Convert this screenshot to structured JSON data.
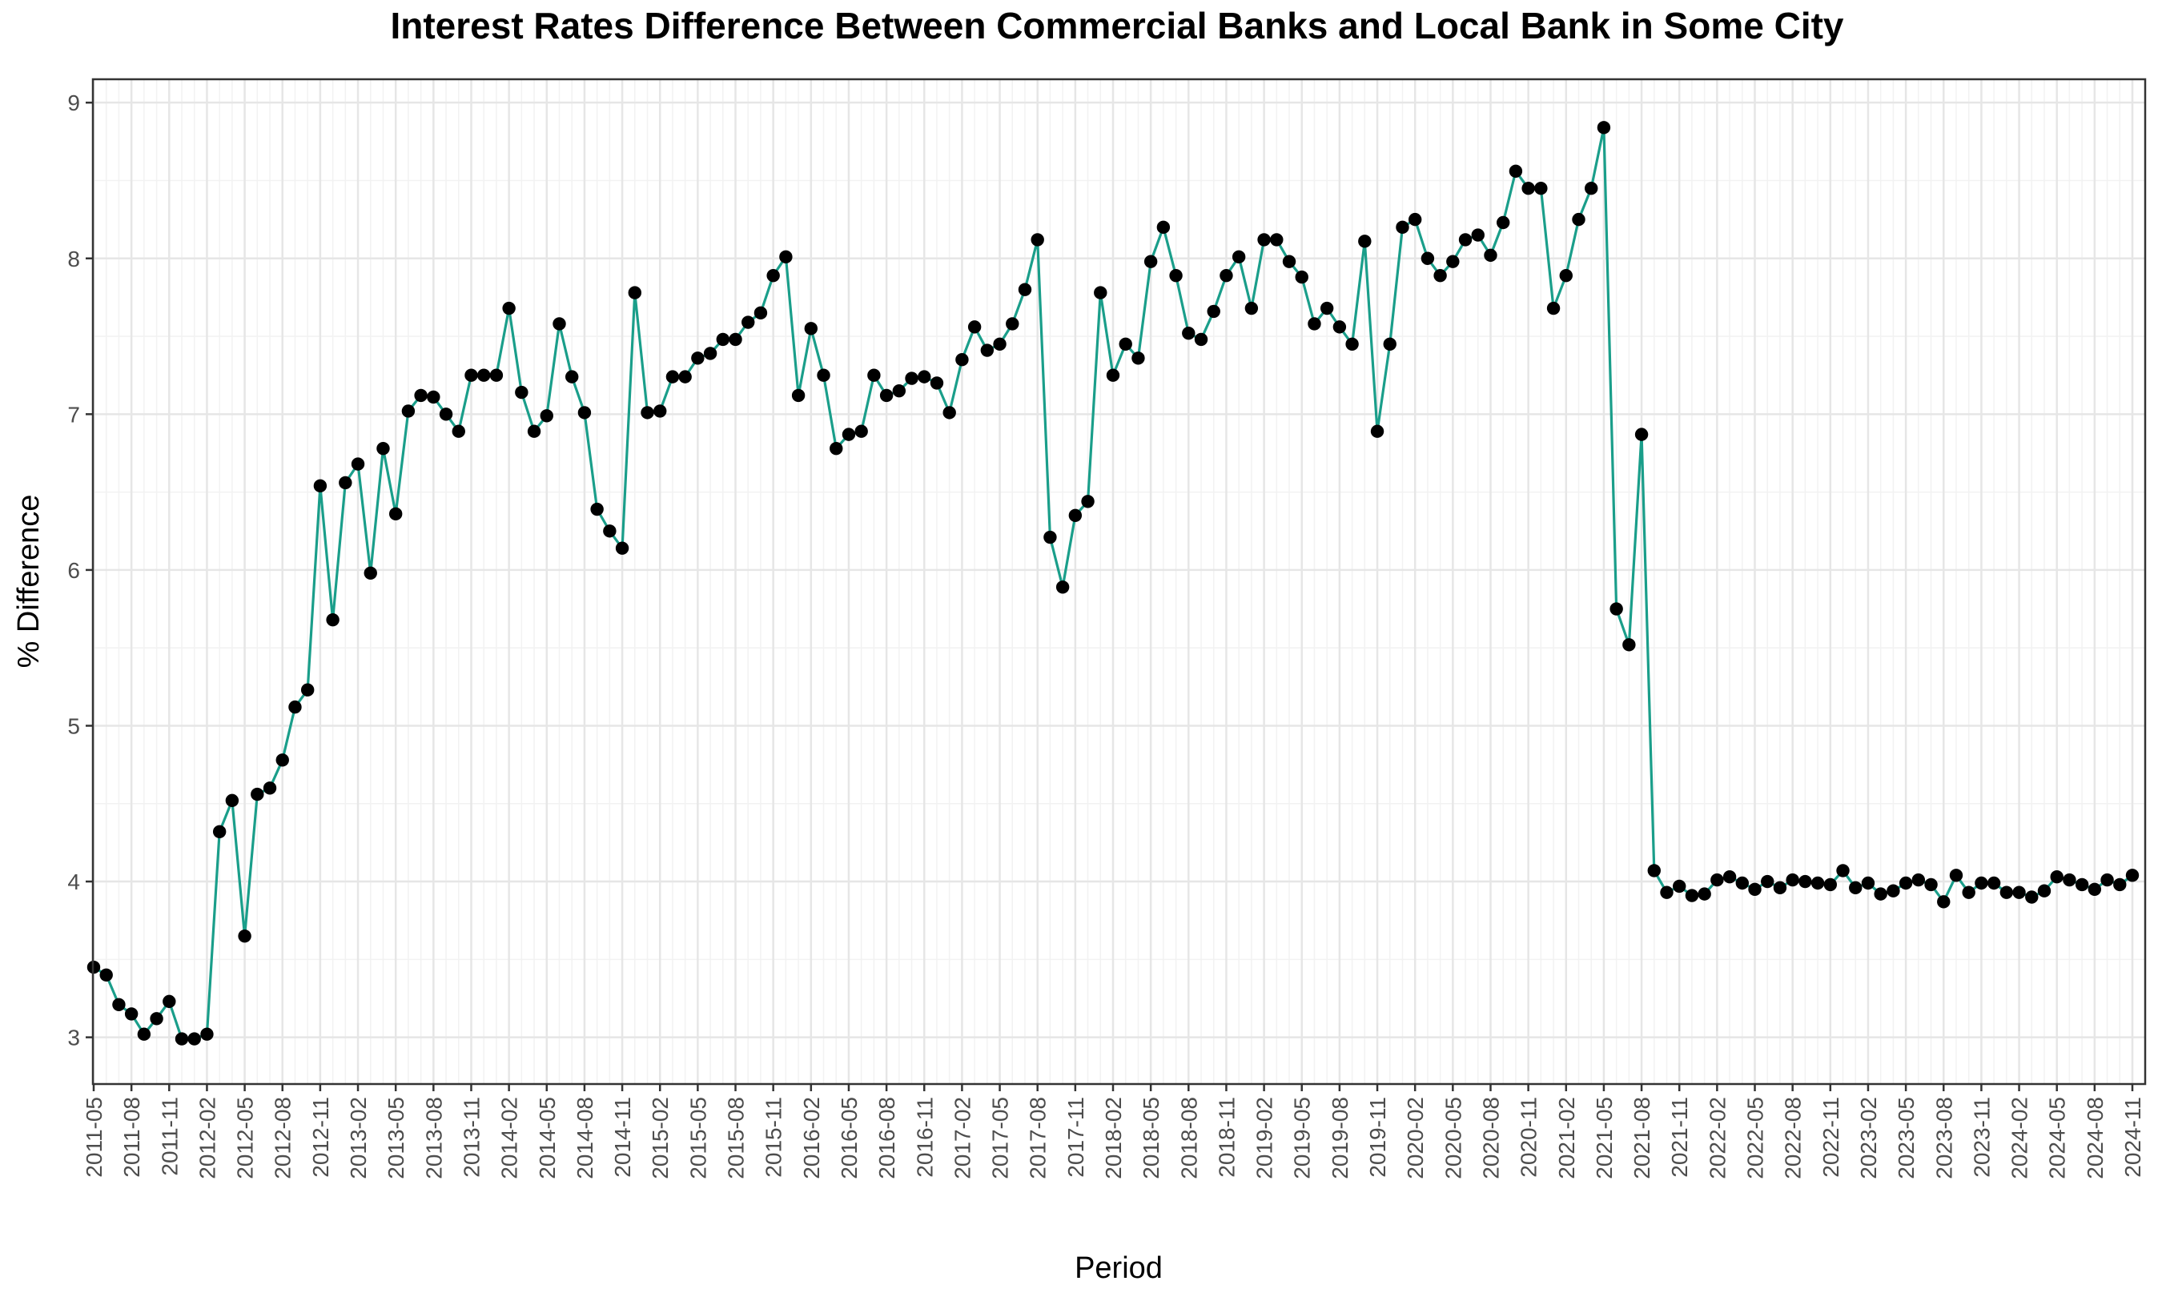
{
  "chart_data": {
    "type": "line",
    "title": "Interest Rates Difference Between Commercial Banks and Local Bank in Some City",
    "xlabel": "Period",
    "ylabel": "% Difference",
    "ylim": [
      2.7,
      9.15
    ],
    "yticks": [
      3,
      4,
      5,
      6,
      7,
      8,
      9
    ],
    "ytick_labels": [
      "3",
      "4",
      "5",
      "6",
      "7",
      "8",
      "9"
    ],
    "xtick_labels": [
      "2011-05",
      "2011-08",
      "2011-11",
      "2012-02",
      "2012-05",
      "2012-08",
      "2012-11",
      "2013-02",
      "2013-05",
      "2013-08",
      "2013-11",
      "2014-02",
      "2014-05",
      "2014-08",
      "2014-11",
      "2015-02",
      "2015-05",
      "2015-08",
      "2015-11",
      "2016-02",
      "2016-05",
      "2016-08",
      "2016-11",
      "2017-02",
      "2017-05",
      "2017-08",
      "2017-11",
      "2018-02",
      "2018-05",
      "2018-08",
      "2018-11",
      "2019-02",
      "2019-05",
      "2019-08",
      "2019-11",
      "2020-02",
      "2020-05",
      "2020-08",
      "2020-11",
      "2021-02",
      "2021-05",
      "2021-08",
      "2021-11",
      "2022-02",
      "2022-05",
      "2022-08",
      "2022-11",
      "2023-02",
      "2023-05",
      "2023-08",
      "2023-11",
      "2024-02",
      "2024-05",
      "2024-08",
      "2024-11"
    ],
    "grid": true,
    "legend": "none",
    "line_color": "#1a9e8a",
    "point_color": "#000000",
    "x_start": "2011-05",
    "x_end": "2024-11",
    "series": [
      {
        "values": [
          3.45,
          3.4,
          3.21,
          3.15,
          3.02,
          3.12,
          3.23,
          2.99,
          2.99,
          3.02,
          4.32,
          4.52,
          3.65,
          4.56,
          4.6,
          4.78,
          5.12,
          5.23,
          6.54,
          5.68,
          6.56,
          6.68,
          5.98,
          6.78,
          6.36,
          7.02,
          7.12,
          7.11,
          7.0,
          6.89,
          7.25,
          7.25,
          7.25,
          7.68,
          7.14,
          6.89,
          6.99,
          7.58,
          7.24,
          7.01,
          6.39,
          6.25,
          6.14,
          7.78,
          7.01,
          7.02,
          7.24,
          7.24,
          7.36,
          7.39,
          7.48,
          7.48,
          7.59,
          7.65,
          7.89,
          8.01,
          7.12,
          7.55,
          7.25,
          6.78,
          6.87,
          6.89,
          7.25,
          7.12,
          7.15,
          7.23,
          7.24,
          7.2,
          7.01,
          7.35,
          7.56,
          7.41,
          7.45,
          7.58,
          7.8,
          8.12,
          6.21,
          5.89,
          6.35,
          6.44,
          7.78,
          7.25,
          7.45,
          7.36,
          7.98,
          8.2,
          7.89,
          7.52,
          7.48,
          7.66,
          7.89,
          8.01,
          7.68,
          8.12,
          8.12,
          7.98,
          7.88,
          7.58,
          7.68,
          7.56,
          7.45,
          8.11,
          6.89,
          7.45,
          8.2,
          8.25,
          8.0,
          7.89,
          7.98,
          8.12,
          8.15,
          8.02,
          8.23,
          8.56,
          8.45,
          8.45,
          7.68,
          7.89,
          8.25,
          8.45,
          8.84,
          5.75,
          5.52,
          6.87,
          4.07,
          3.93,
          3.97,
          3.91,
          3.92,
          4.01,
          4.03,
          3.99,
          3.95,
          4.0,
          3.96,
          4.01,
          4.0,
          3.99,
          3.98,
          4.07,
          3.96,
          3.99,
          3.92,
          3.94,
          3.99,
          4.01,
          3.98,
          3.87,
          4.04,
          3.93,
          3.99,
          3.99,
          3.93,
          3.93,
          3.9,
          3.94,
          4.03,
          4.01,
          3.98,
          3.95,
          4.01,
          3.98,
          4.04
        ]
      }
    ]
  }
}
